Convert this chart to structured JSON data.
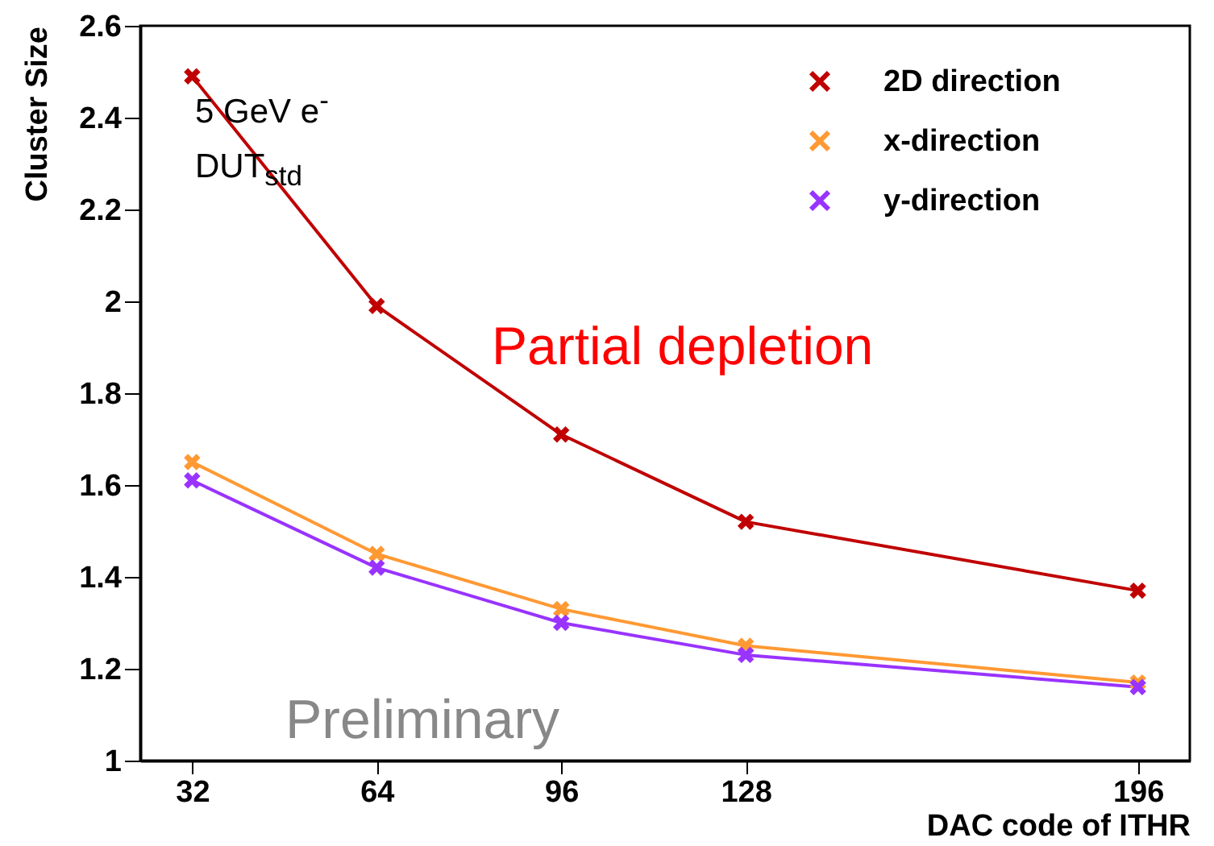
{
  "chart_data": {
    "type": "line",
    "xlabel": "DAC code of ITHR",
    "ylabel": "Cluster Size",
    "x": [
      32,
      64,
      96,
      128,
      196
    ],
    "xlim": [
      23,
      205
    ],
    "xticks": [
      32,
      64,
      96,
      128,
      196
    ],
    "ylim": [
      1,
      2.6
    ],
    "yticks": [
      1,
      1.2,
      1.4,
      1.6,
      1.8,
      2,
      2.2,
      2.4,
      2.6
    ],
    "series": [
      {
        "name": "2D direction",
        "color": "#c00000",
        "values": [
          2.49,
          1.99,
          1.71,
          1.52,
          1.37
        ]
      },
      {
        "name": "x-direction",
        "color": "#ff9933",
        "values": [
          1.65,
          1.45,
          1.33,
          1.25,
          1.17
        ]
      },
      {
        "name": "y-direction",
        "color": "#9933ff",
        "values": [
          1.61,
          1.42,
          1.3,
          1.23,
          1.16
        ]
      }
    ],
    "marker": "cross",
    "line_style": "solid",
    "grid": false,
    "legend": "top right",
    "annotations": [
      "5 GeV e$^{-}$",
      "DUT$_{std}$",
      "Partial depletion",
      "Preliminary"
    ]
  }
}
